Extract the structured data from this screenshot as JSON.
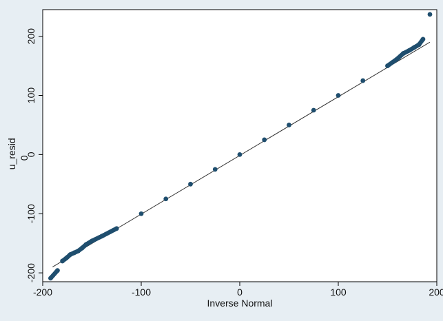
{
  "chart_data": {
    "type": "scatter",
    "title": "",
    "xlabel": "Inverse Normal",
    "ylabel": "u_resid",
    "ylabel_sub": "0",
    "xlim": [
      -200,
      200
    ],
    "ylim": [
      -215,
      245
    ],
    "xticks": [
      -200,
      -100,
      0,
      100,
      200
    ],
    "xtick_labels": [
      "-200",
      "-100",
      "0",
      "100",
      "200"
    ],
    "yticks": [
      -200,
      -100,
      0,
      100,
      200
    ],
    "ytick_labels": [
      "-200",
      "-100",
      "0",
      "100",
      "200"
    ],
    "grid": false,
    "reference_line": {
      "x": [
        -190,
        193
      ],
      "y": [
        -190,
        190
      ]
    },
    "series": [
      {
        "marker_color": "#1f4e6e",
        "x": [
          -192,
          -185,
          -180,
          -176,
          -172,
          -168,
          -164,
          -160,
          -156,
          -150,
          -140,
          -125,
          -100,
          -75,
          -50,
          -25,
          0,
          25,
          50,
          75,
          100,
          125,
          150,
          160,
          166,
          172,
          177,
          182,
          186,
          193
        ],
        "y": [
          -209,
          -196,
          -180,
          -175,
          -169,
          -166,
          -163,
          -158,
          -152,
          -146,
          -138,
          -125,
          -100,
          -75,
          -50,
          -25,
          0,
          25,
          50,
          75,
          100,
          125,
          150,
          162,
          171,
          176,
          181,
          186,
          195,
          237
        ]
      }
    ],
    "colors": {
      "background": "#e7eef3",
      "plot_area": "#ffffff",
      "points": "#1f4e6e",
      "reference_line": "#333333"
    }
  }
}
